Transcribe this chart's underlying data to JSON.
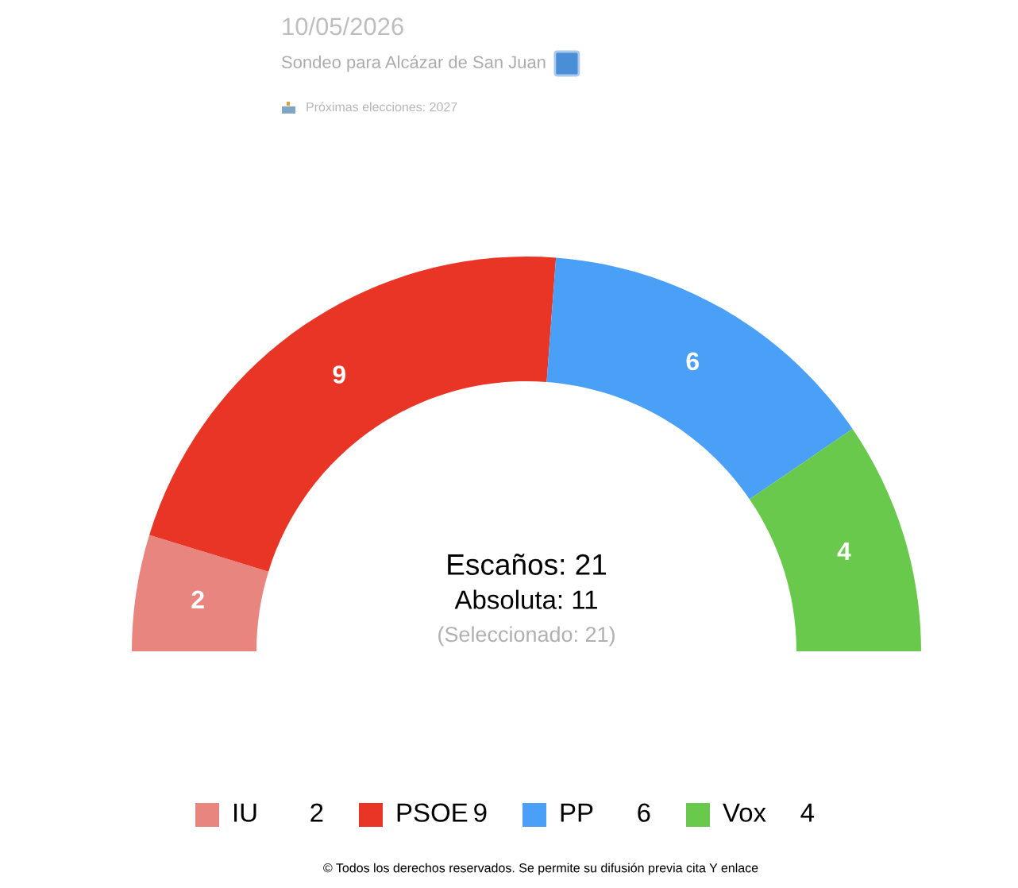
{
  "chart_data": {
    "type": "donut",
    "title": "10/05/2026",
    "subtitle": "Sondeo para Alcázar de San Juan",
    "categories": [
      "IU",
      "PSOE",
      "PP",
      "Vox"
    ],
    "values": [
      2,
      9,
      6,
      4
    ],
    "value_labels": [
      "2",
      "9",
      "6",
      "4"
    ],
    "colors": [
      "#e8857f",
      "#e83525",
      "#4aa0f7",
      "#68c94c"
    ],
    "legend": "bottom",
    "annotations": [
      "Próximas elecciones: 2027",
      "Escaños: 21",
      "Absoluta: 11",
      "(Seleccionado: 21)",
      "© Todos los derechos reservados. Se permite su difusión previa cita Y enlace"
    ]
  }
}
